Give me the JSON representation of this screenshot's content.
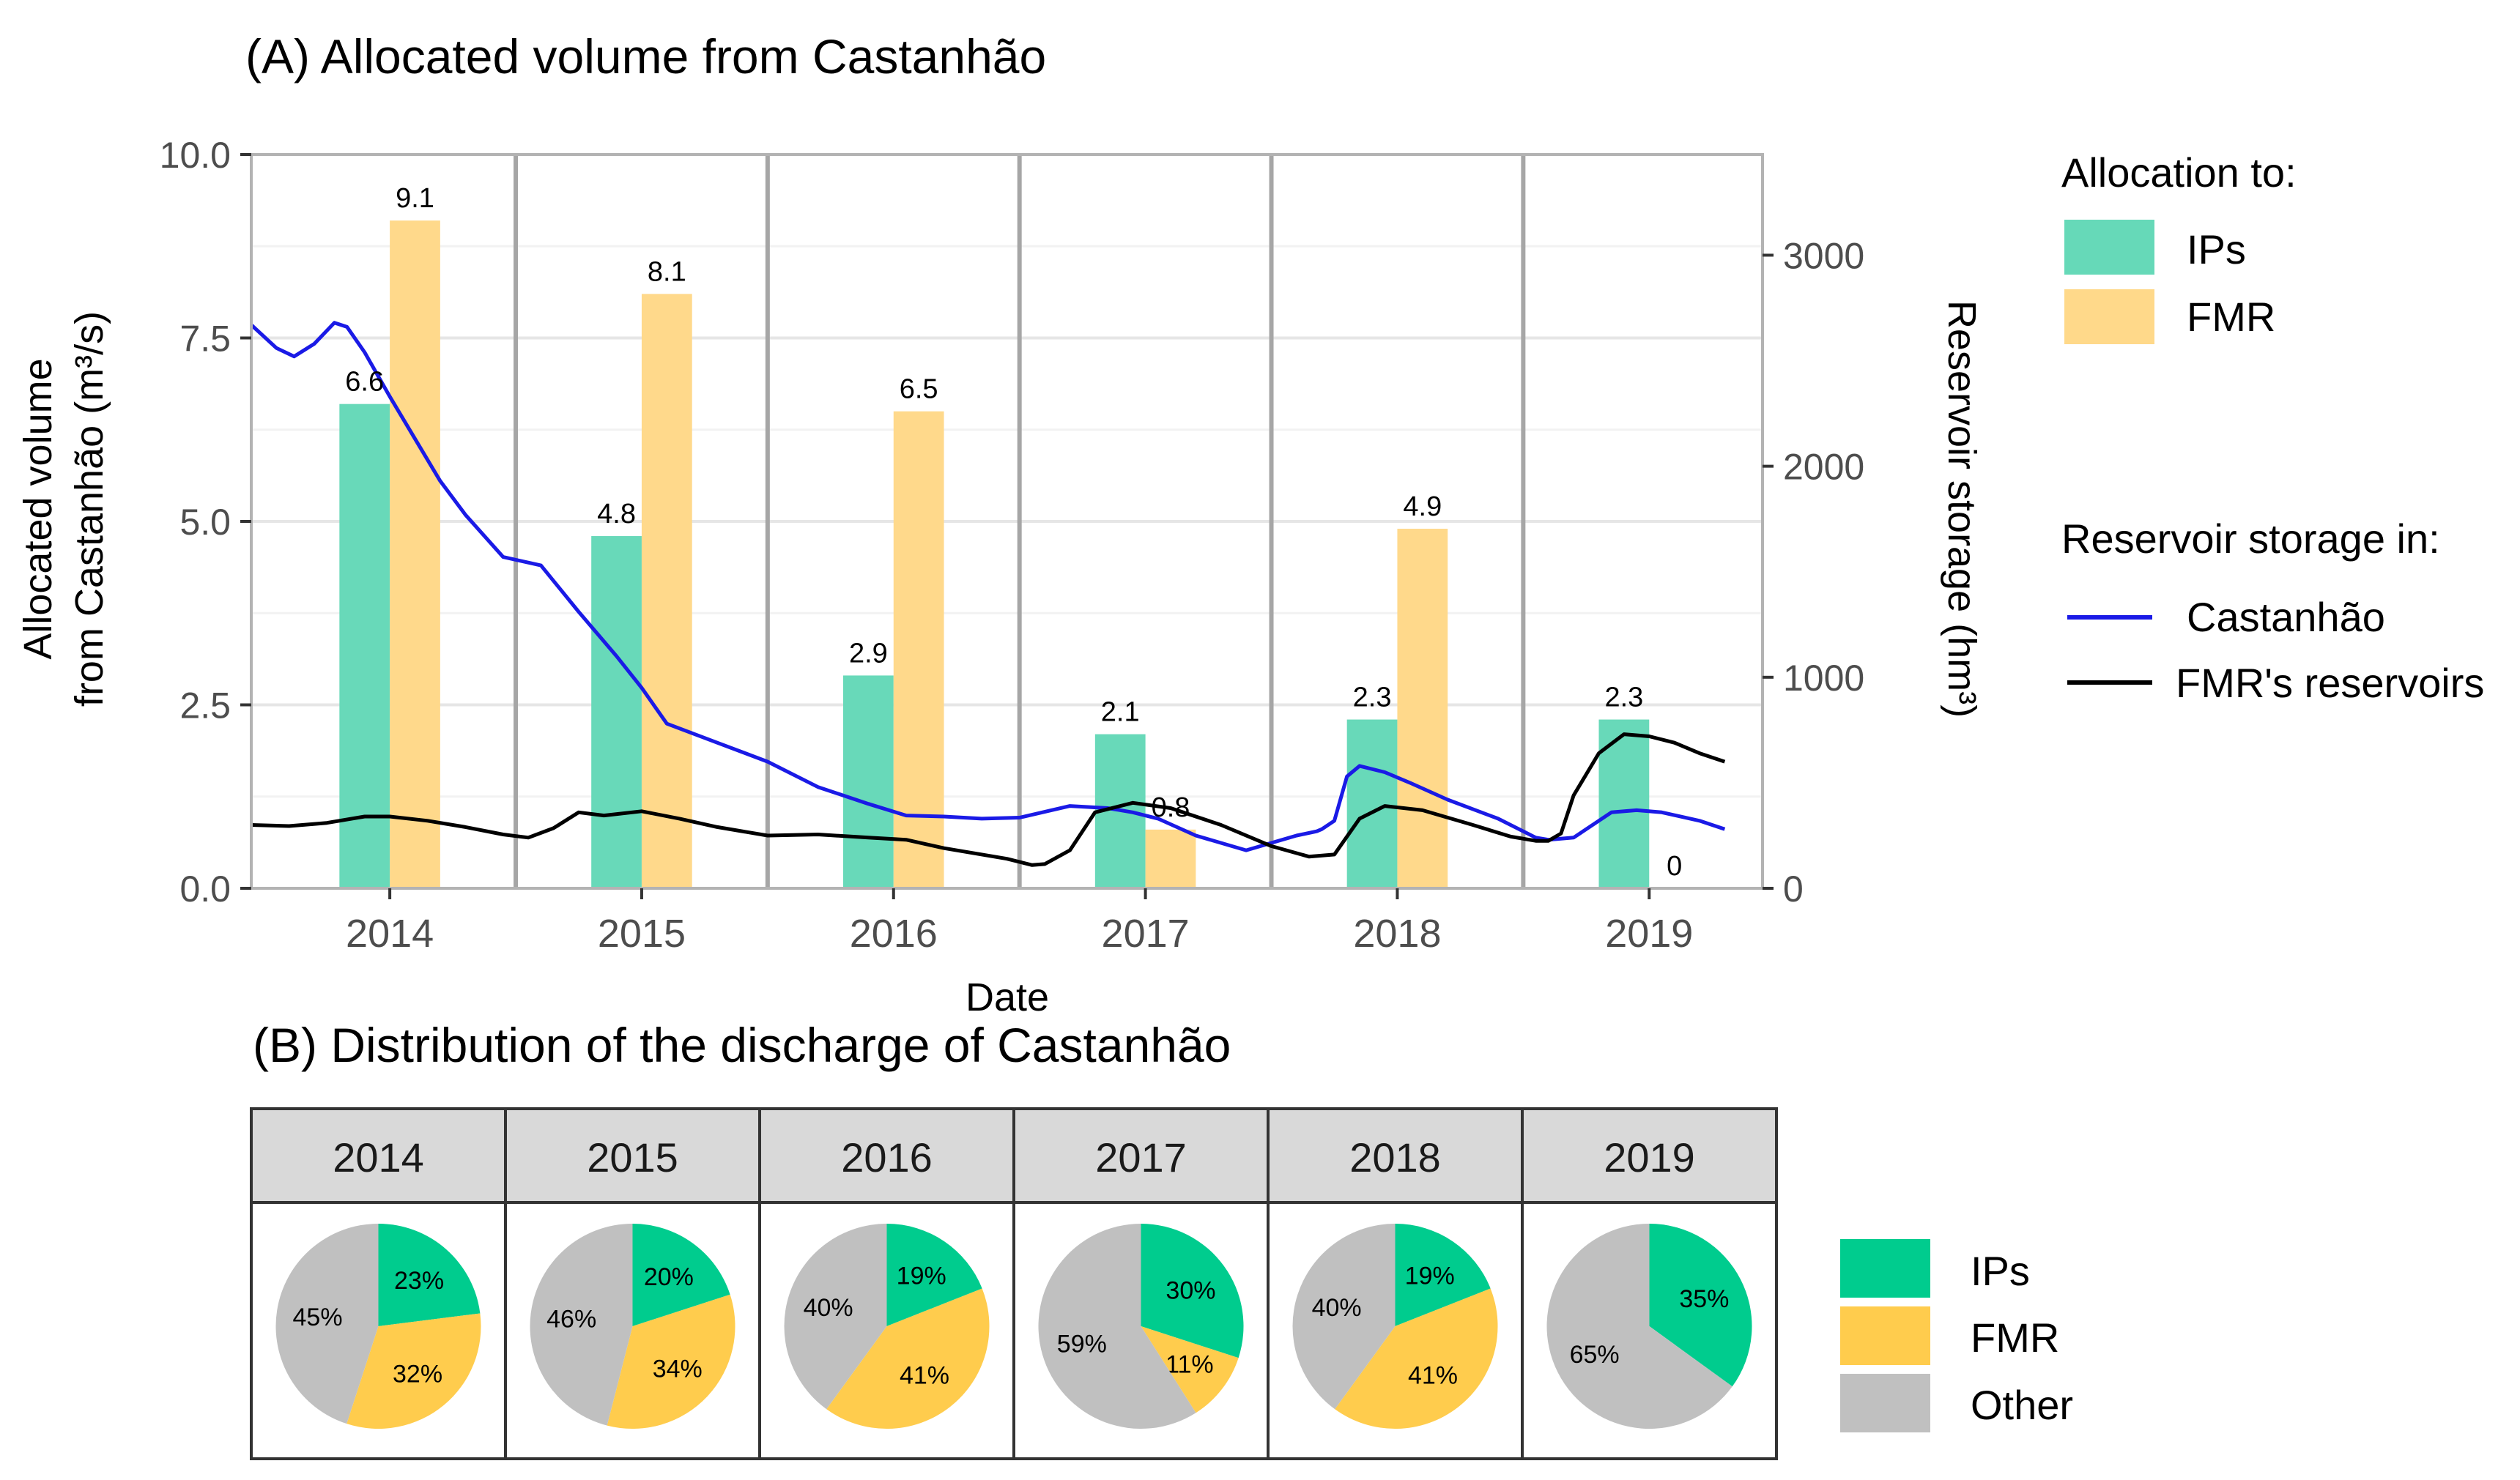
{
  "chart_data": [
    {
      "type": "bar+line",
      "title": "(A) Allocated volume from Castanhão",
      "xlabel": "Date",
      "ylabel_left": "Allocated volume",
      "ylabel_left2": "from Castanhão (m³/s)",
      "ylabel_right": "Reservoir storage (hm³)",
      "ylim_left": [
        0,
        10
      ],
      "ylim_right": [
        0,
        3477
      ],
      "yticks_left": [
        0,
        2.5,
        5,
        7.5,
        10
      ],
      "yticks_left_labels": [
        "0.0",
        "2.5",
        "5.0",
        "7.5",
        "10.0"
      ],
      "yticks_right": [
        0,
        1000,
        2000,
        3000
      ],
      "yticks_right_labels": [
        "0",
        "1000",
        "2000",
        "3000"
      ],
      "xlim": [
        2013.45,
        2019.45
      ],
      "categories": [
        "2014",
        "2015",
        "2016",
        "2017",
        "2018",
        "2019"
      ],
      "category_positions": [
        2014,
        2015,
        2016,
        2017,
        2018,
        2019
      ],
      "year_dividers": [
        2014.5,
        2015.5,
        2016.5,
        2017.5,
        2018.5
      ],
      "bar_series": [
        {
          "name": "IPs",
          "color": "#66d9b8",
          "values": [
            6.6,
            4.8,
            2.9,
            2.1,
            2.3,
            2.3
          ],
          "labels": [
            "6.6",
            "4.8",
            "2.9",
            "2.1",
            "2.3",
            "2.3"
          ]
        },
        {
          "name": "FMR",
          "color": "#ffd98a",
          "values": [
            9.1,
            8.1,
            6.5,
            0.8,
            4.9,
            0
          ],
          "labels": [
            "9.1",
            "8.1",
            "6.5",
            "0.8",
            "4.9",
            "0"
          ]
        }
      ],
      "line_series": [
        {
          "name": "Castanhão",
          "color": "#1a1ae6",
          "axis": "right",
          "x": [
            2013.45,
            2013.55,
            2013.62,
            2013.7,
            2013.78,
            2013.83,
            2013.9,
            2014.0,
            2014.1,
            2014.2,
            2014.3,
            2014.45,
            2014.6,
            2014.75,
            2014.9,
            2015.0,
            2015.1,
            2015.3,
            2015.5,
            2015.7,
            2015.9,
            2016.05,
            2016.2,
            2016.35,
            2016.5,
            2016.7,
            2016.85,
            2016.95,
            2017.05,
            2017.2,
            2017.4,
            2017.6,
            2017.68,
            2017.7,
            2017.75,
            2017.8,
            2017.85,
            2017.95,
            2018.05,
            2018.2,
            2018.4,
            2018.55,
            2018.6,
            2018.7,
            2018.85,
            2018.95,
            2019.05,
            2019.2,
            2019.3
          ],
          "y": [
            2670,
            2560,
            2520,
            2580,
            2680,
            2660,
            2540,
            2330,
            2130,
            1930,
            1770,
            1570,
            1530,
            1310,
            1100,
            950,
            780,
            690,
            600,
            480,
            400,
            345,
            340,
            330,
            335,
            390,
            380,
            360,
            330,
            250,
            180,
            250,
            270,
            280,
            320,
            530,
            580,
            550,
            500,
            420,
            330,
            240,
            230,
            240,
            360,
            370,
            360,
            320,
            280
          ]
        },
        {
          "name": "FMR's reservoirs",
          "color": "#000000",
          "axis": "right",
          "x": [
            2013.45,
            2013.6,
            2013.75,
            2013.9,
            2014.0,
            2014.15,
            2014.3,
            2014.45,
            2014.55,
            2014.65,
            2014.75,
            2014.85,
            2015.0,
            2015.15,
            2015.3,
            2015.5,
            2015.7,
            2015.9,
            2016.05,
            2016.2,
            2016.45,
            2016.55,
            2016.6,
            2016.7,
            2016.8,
            2016.95,
            2017.1,
            2017.3,
            2017.5,
            2017.65,
            2017.75,
            2017.85,
            2017.95,
            2018.1,
            2018.3,
            2018.45,
            2018.55,
            2018.6,
            2018.65,
            2018.7,
            2018.8,
            2018.9,
            2019.0,
            2019.1,
            2019.2,
            2019.3
          ],
          "y": [
            300,
            295,
            310,
            340,
            340,
            320,
            290,
            255,
            240,
            285,
            360,
            345,
            365,
            330,
            290,
            250,
            255,
            240,
            230,
            190,
            140,
            110,
            115,
            180,
            360,
            405,
            380,
            300,
            200,
            150,
            160,
            330,
            390,
            370,
            300,
            245,
            225,
            225,
            260,
            440,
            640,
            730,
            720,
            690,
            640,
            600
          ]
        }
      ],
      "legend": {
        "title_bars": "Allocation to:",
        "bar_items": [
          "IPs",
          "FMR"
        ],
        "title_lines": "Reservoir storage in:",
        "line_items": [
          "Castanhão",
          "FMR's reservoirs"
        ],
        "placement": "right"
      }
    },
    {
      "type": "pie",
      "title": "(B) Distribution of the discharge of Castanhão",
      "categories": [
        "IPs",
        "FMR",
        "Other"
      ],
      "colors": {
        "IPs": "#00cc8e",
        "FMR": "#ffcc4d",
        "Other": "#c0c0c0"
      },
      "panels": [
        {
          "year": "2014",
          "values": [
            23,
            32,
            45
          ],
          "labels": [
            "23%",
            "32%",
            "45%"
          ]
        },
        {
          "year": "2015",
          "values": [
            20,
            34,
            46
          ],
          "labels": [
            "20%",
            "34%",
            "46%"
          ]
        },
        {
          "year": "2016",
          "values": [
            19,
            41,
            40
          ],
          "labels": [
            "19%",
            "41%",
            "40%"
          ]
        },
        {
          "year": "2017",
          "values": [
            30,
            11,
            59
          ],
          "labels": [
            "30%",
            "11%",
            "59%"
          ]
        },
        {
          "year": "2018",
          "values": [
            19,
            41,
            40
          ],
          "labels": [
            "19%",
            "41%",
            "40%"
          ]
        },
        {
          "year": "2019",
          "values": [
            35,
            0,
            65
          ],
          "labels": [
            "35%",
            "",
            "65%"
          ]
        }
      ],
      "legend": {
        "items": [
          "IPs",
          "FMR",
          "Other"
        ],
        "placement": "right"
      }
    }
  ]
}
